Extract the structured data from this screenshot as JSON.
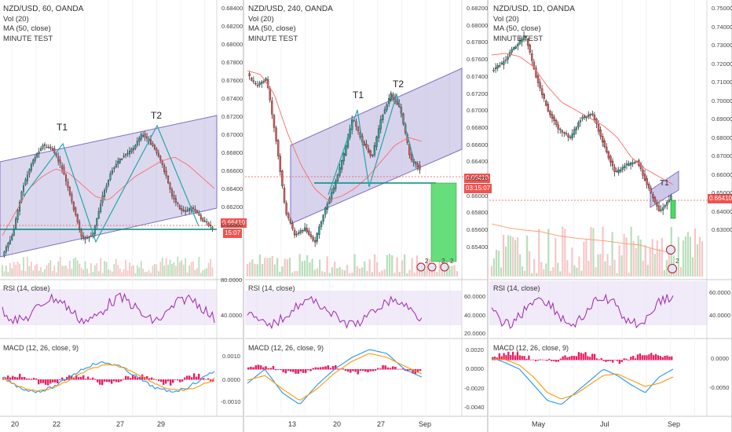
{
  "panels": [
    {
      "title": "NZD/USD, 60, OANDA",
      "indicators": [
        "Vol (20)",
        "MA (50, close)",
        "MINUTE TEST"
      ],
      "price_axis": [
        "0.68400",
        "0.68200",
        "0.68000",
        "0.67800",
        "0.67600",
        "0.67400",
        "0.67200",
        "0.67000",
        "0.66800",
        "0.66600",
        "0.66400",
        "0.66200",
        "0.66000"
      ],
      "price_badge": "0.66410",
      "timer_badge": "15:07",
      "rsi_label": "RSI (14, close)",
      "rsi_axis": [
        "80.0000",
        "40.0000"
      ],
      "macd_label": "MACD (12, 26, close, 9)",
      "macd_axis": [
        "0.0010",
        "0.0000",
        "-0.0010"
      ],
      "x_labels": [
        "20",
        "22",
        "27",
        "29"
      ],
      "t1": "T1",
      "t2": "T2"
    },
    {
      "title": "NZD/USD, 240, OANDA",
      "indicators": [
        "Vol (20)",
        "MA (50, close)",
        "MINUTE TEST"
      ],
      "price_axis": [
        "0.68200",
        "0.68000",
        "0.67800",
        "0.67600",
        "0.67400",
        "0.67200",
        "0.67000",
        "0.66800",
        "0.66600",
        "0.66400",
        "0.66200",
        "0.66000",
        "0.65800",
        "0.65600",
        "0.65400"
      ],
      "price_badge": "0.66410",
      "timer_badge": "03:15:07",
      "rsi_label": "RSI (14, close)",
      "rsi_axis": [
        "60.0000",
        "40.0000",
        "20.0000"
      ],
      "macd_label": "MACD (12, 26, close, 9)",
      "macd_axis": [
        "0.0020",
        "0.0000",
        "-0.0020",
        "-0.0040"
      ],
      "x_labels": [
        "13",
        "20",
        "27",
        "Sep"
      ],
      "t1": "T1",
      "t2": "T2"
    },
    {
      "title": "NZD/USD, 1D, OANDA",
      "indicators": [
        "Vol (20)",
        "MA (50, close)",
        "MINUTE TEST"
      ],
      "price_axis": [
        "0.75000",
        "0.74000",
        "0.73000",
        "0.72000",
        "0.71000",
        "0.70000",
        "0.69000",
        "0.68000",
        "0.67000",
        "0.66000",
        "0.65000",
        "0.64000",
        "0.63000"
      ],
      "price_badge": "0.66410",
      "rsi_label": "RSI (14, close)",
      "rsi_axis": [
        "60.0000",
        "40.0000"
      ],
      "macd_label": "MACD (12, 26, close, 9)",
      "macd_axis": [
        "0.0000",
        "-0.0050"
      ],
      "x_labels": [
        "May",
        "Jul",
        "Sep"
      ],
      "t1": "T1"
    }
  ],
  "event_counts": [
    "2",
    "2",
    "2",
    "2"
  ],
  "colors": {
    "bull": "#26a69a",
    "bear": "#ef5350",
    "channel": "#9c92d0",
    "ma": "#ff6a6a",
    "rsi": "#9c27b0",
    "macd": "#2196f3",
    "signal": "#ff9800",
    "hist": "#e91e63",
    "badge": "#ef5350",
    "support": "#00897b",
    "target": "#4cd964"
  }
}
